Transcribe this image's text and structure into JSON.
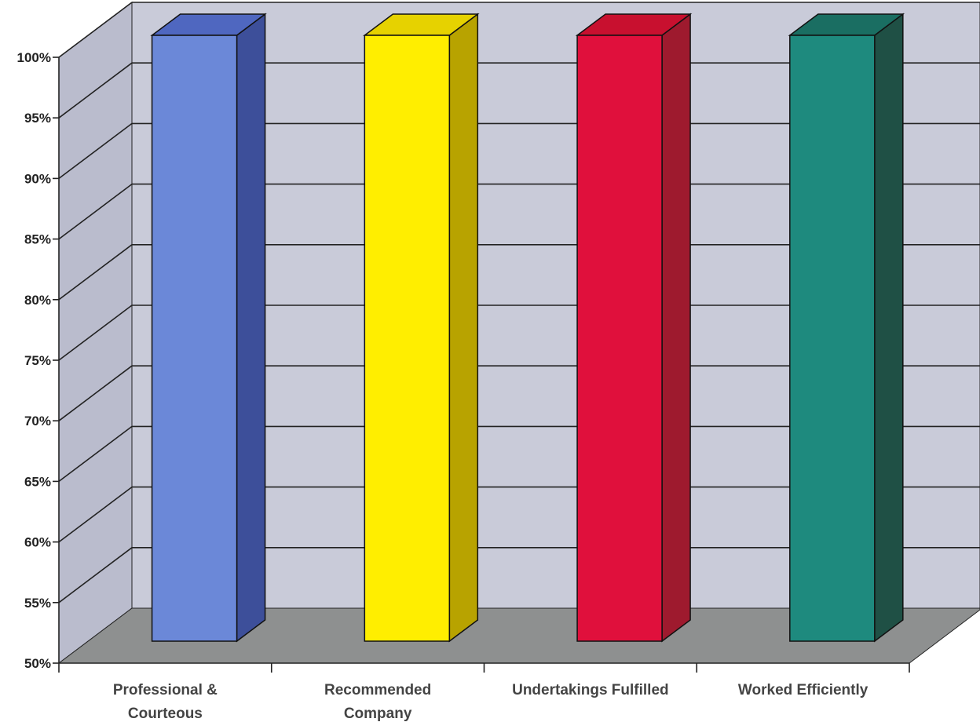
{
  "chart_data": {
    "type": "bar",
    "title": "",
    "xlabel": "",
    "ylabel": "",
    "ylim": [
      50,
      100
    ],
    "y_ticks": [
      50,
      55,
      60,
      65,
      70,
      75,
      80,
      85,
      90,
      95,
      100
    ],
    "y_tick_format": "{v}%",
    "y_tick_labels": [
      "50%",
      "55%",
      "60%",
      "65%",
      "70%",
      "75%",
      "80%",
      "85%",
      "90%",
      "95%",
      "100%"
    ],
    "grid": true,
    "legend": "none",
    "style": "3d-columns",
    "categories": [
      [
        "Professional &",
        "Courteous"
      ],
      [
        "Recommended",
        "Company"
      ],
      [
        "Undertakings Fulfilled"
      ],
      [
        "Worked Efficiently"
      ]
    ],
    "values": [
      100,
      100,
      100,
      100
    ],
    "colors": {
      "bar_fronts": [
        "#6b88d8",
        "#ffee00",
        "#e0103c",
        "#1e8a7e"
      ],
      "bar_sides": [
        "#3d4f9a",
        "#b8a300",
        "#9e1a2e",
        "#1f5045"
      ],
      "bar_tops": [
        "#4f67c0",
        "#e6d200",
        "#c8102f",
        "#1a6e62"
      ],
      "back_wall": "#c9cbd9",
      "side_wall": "#babccd",
      "floor": "#8e9090",
      "gridline": "#222222",
      "axis": "#222222"
    }
  }
}
